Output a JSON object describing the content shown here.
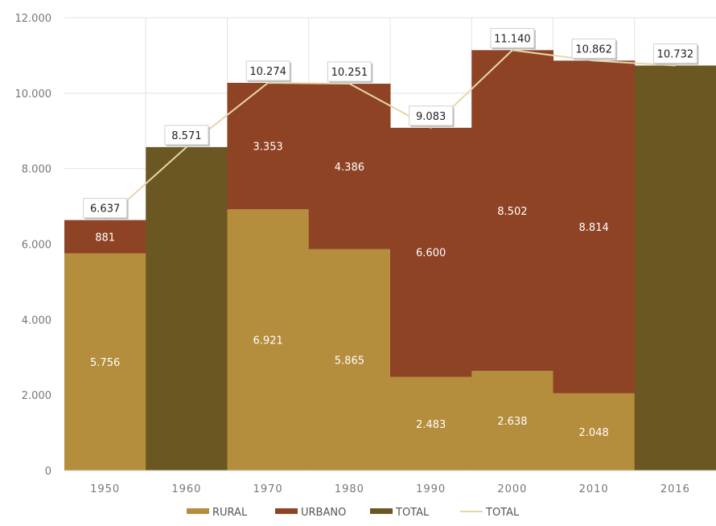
{
  "chart_data": {
    "type": "bar",
    "stacked": true,
    "categories": [
      "1950",
      "1960",
      "1970",
      "1980",
      "1990",
      "2000",
      "2010",
      "2016"
    ],
    "series": [
      {
        "name": "RURAL",
        "color": "#b48d3d",
        "values": [
          5756,
          null,
          6921,
          5865,
          2483,
          2638,
          2048,
          null
        ],
        "labels": [
          "5.756",
          "",
          "6.921",
          "5.865",
          "2.483",
          "2.638",
          "2.048",
          ""
        ]
      },
      {
        "name": "URBANO",
        "color": "#8e4324",
        "values": [
          881,
          null,
          3353,
          4386,
          6600,
          8502,
          8814,
          null
        ],
        "labels": [
          "881",
          "",
          "3.353",
          "4.386",
          "6.600",
          "8.502",
          "8.814",
          ""
        ]
      },
      {
        "name": "TOTAL",
        "color": "#6b5722",
        "values": [
          null,
          8571,
          null,
          null,
          null,
          null,
          null,
          10732
        ],
        "labels": [
          "",
          "",
          "",
          "",
          "",
          "",
          "",
          ""
        ]
      }
    ],
    "line": {
      "name": "TOTAL",
      "color": "#e6d7a8",
      "values": [
        6637,
        8571,
        10274,
        10251,
        9083,
        11140,
        10862,
        10732
      ],
      "labels": [
        "6.637",
        "8.571",
        "10.274",
        "10.251",
        "9.083",
        "11.140",
        "10.862",
        "10.732"
      ]
    },
    "ylim": [
      0,
      12000
    ],
    "yticks": [
      0,
      2000,
      4000,
      6000,
      8000,
      10000,
      12000
    ],
    "ytick_labels": [
      "0",
      "2.000",
      "4.000",
      "6.000",
      "8.000",
      "10.000",
      "12.000"
    ],
    "grid": true,
    "legend_position": "bottom",
    "title": "",
    "xlabel": "",
    "ylabel": ""
  }
}
